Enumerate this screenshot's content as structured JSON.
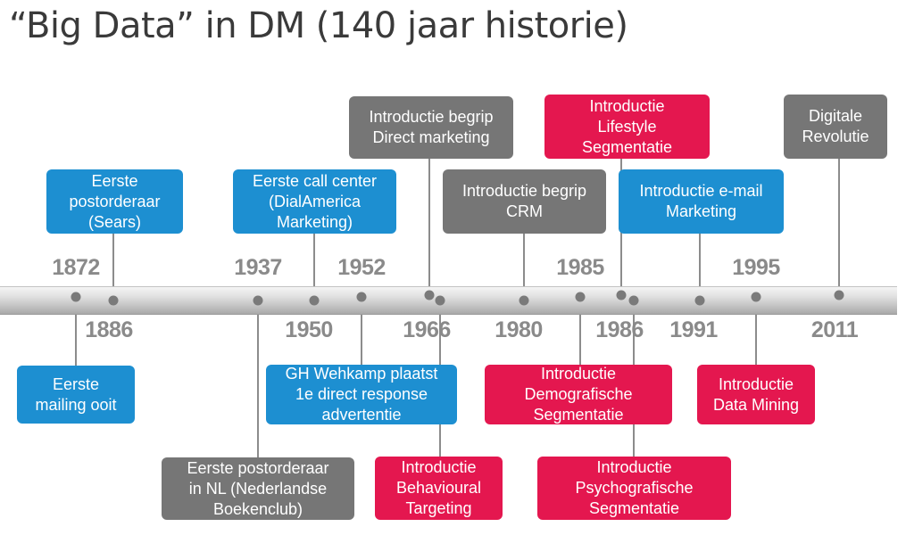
{
  "title": "“Big Data” in DM (140 jaar historie)",
  "colors": {
    "blue": "#1d8fd1",
    "gray": "#767676",
    "red": "#e4174f",
    "year_text": "#8a8a8a"
  },
  "years": {
    "y1872": "1872",
    "y1886": "1886",
    "y1937": "1937",
    "y1950": "1950",
    "y1952": "1952",
    "y1966": "1966",
    "y1980": "1980",
    "y1985": "1985",
    "y1986": "1986",
    "y1991": "1991",
    "y1995": "1995",
    "y2011": "2011"
  },
  "events": {
    "sears": "Eerste\npostorderaar\n(Sears)",
    "mailing": "Eerste\nmailing ooit",
    "callcenter": "Eerste call center\n(DialAmerica\nMarketing)",
    "boekenclub": "Eerste postorderaar\nin NL (Nederlandse\nBoekenclub)",
    "wehkamp": "GH Wehkamp plaatst\n1e direct response\nadvertentie",
    "dm": "Introductie begrip\nDirect marketing",
    "behavioural": "Introductie\nBehavioural\nTargeting",
    "crm": "Introductie begrip\nCRM",
    "demografisch": "Introductie\nDemografische\nSegmentatie",
    "lifestyle": "Introductie\nLifestyle\nSegmentatie",
    "psychografisch": "Introductie\nPsychografische\nSegmentatie",
    "email": "Introductie e-mail\nMarketing",
    "datamining": "Introductie\nData Mining",
    "digitaal": "Digitale\nRevolutie"
  }
}
